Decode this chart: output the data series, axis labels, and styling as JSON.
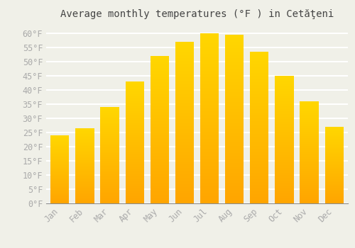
{
  "title": "Average monthly temperatures (°F ) in Cetăţeni",
  "months": [
    "Jan",
    "Feb",
    "Mar",
    "Apr",
    "May",
    "Jun",
    "Jul",
    "Aug",
    "Sep",
    "Oct",
    "Nov",
    "Dec"
  ],
  "values": [
    24,
    26.5,
    34,
    43,
    52,
    57,
    60,
    59.5,
    53.5,
    45,
    36,
    27
  ],
  "bar_color_top": "#FFC125",
  "bar_color_bottom": "#FFA500",
  "background_color": "#F0F0E8",
  "grid_color": "#FFFFFF",
  "yticks": [
    0,
    5,
    10,
    15,
    20,
    25,
    30,
    35,
    40,
    45,
    50,
    55,
    60
  ],
  "ylim": [
    0,
    63
  ],
  "title_fontsize": 10,
  "tick_fontsize": 8.5,
  "tick_color": "#AAAAAA"
}
